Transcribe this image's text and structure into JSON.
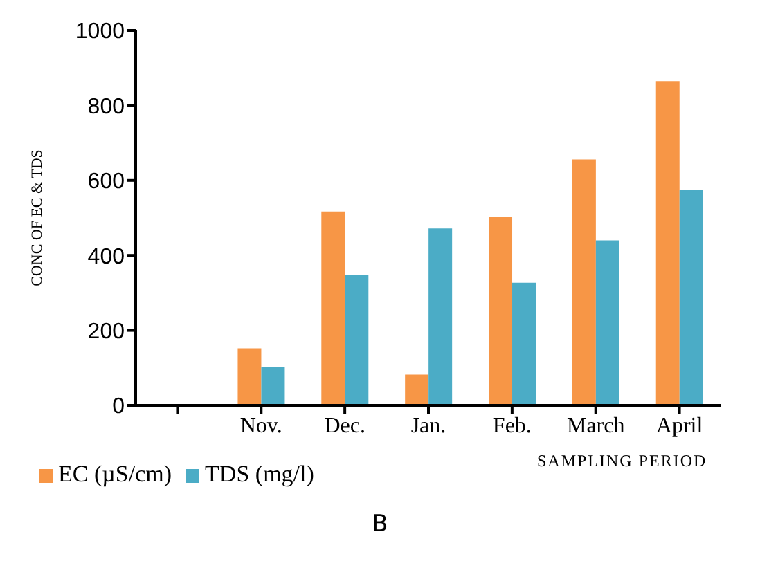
{
  "chart_data": {
    "type": "bar",
    "ylabel": "CONC OF EC & TDS",
    "xlabel": "SAMPLING PERIOD",
    "annotations": [
      "B"
    ],
    "categories": [
      null,
      "Nov.",
      "Dec.",
      "Jan.",
      "Feb.",
      "March",
      "April"
    ],
    "series": [
      {
        "name": "EC (µS/cm)",
        "color": "#f79646",
        "values": [
          null,
          152,
          517,
          82,
          503,
          656,
          865
        ]
      },
      {
        "name": "TDS (mg/l)",
        "color": "#4bacc6",
        "values": [
          null,
          102,
          347,
          472,
          327,
          440,
          574
        ]
      }
    ],
    "ylim": [
      0,
      1000
    ],
    "yticks": [
      0,
      200,
      400,
      600,
      800,
      1000
    ],
    "grid": false,
    "legend": "bottom left"
  }
}
